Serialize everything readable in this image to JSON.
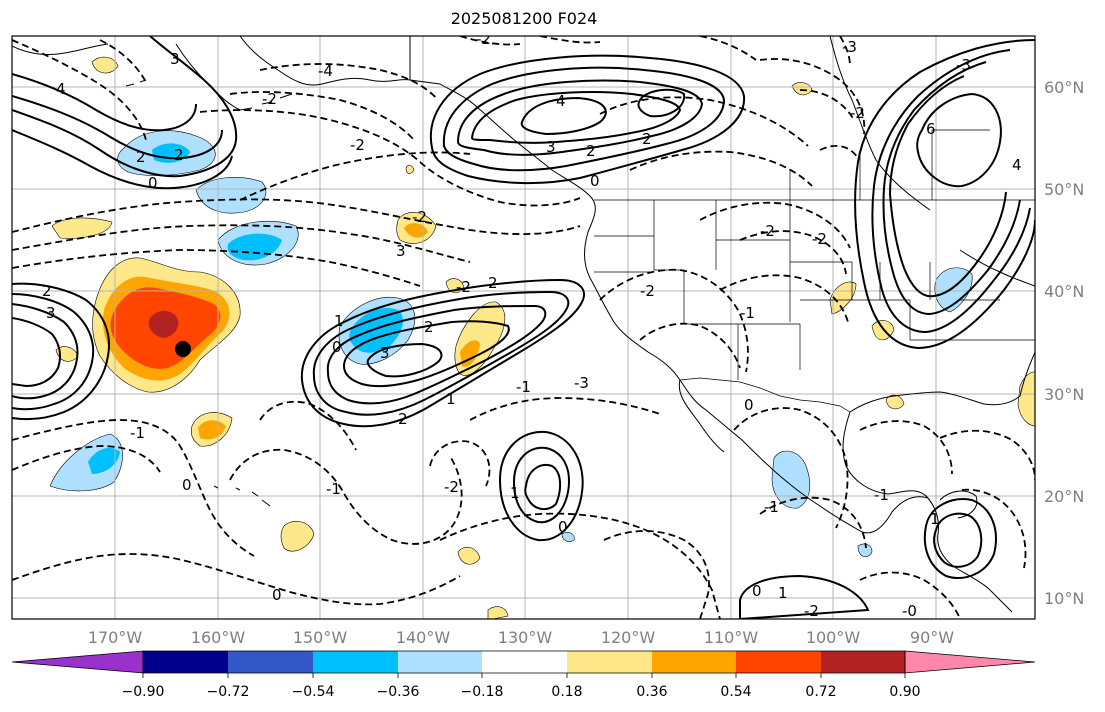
{
  "title": "2025081200 F024",
  "map": {
    "lon_range": [
      -180,
      -80
    ],
    "lat_range": [
      8,
      65
    ],
    "lat_labels": [
      "60°N",
      "50°N",
      "40°N",
      "30°N",
      "20°N",
      "10°N"
    ],
    "lon_labels": [
      "170°W",
      "160°W",
      "150°W",
      "140°W",
      "130°W",
      "120°W",
      "110°W",
      "100°W",
      "90°W"
    ],
    "marker": {
      "lon": -163,
      "lat": 34.5
    }
  },
  "colorbar": {
    "ticks": [
      "−0.90",
      "−0.72",
      "−0.54",
      "−0.36",
      "−0.18",
      "0.18",
      "0.36",
      "0.54",
      "0.72",
      "0.90"
    ],
    "colors": [
      "#9932cc",
      "#00008b",
      "#3457c8",
      "#00bfff",
      "#b0e0ff",
      "#ffffff",
      "#ffe88a",
      "#ffa500",
      "#ff4500",
      "#b22222",
      "#ff88aa"
    ]
  },
  "contour_labels": [
    "4",
    "3",
    "2",
    "2",
    "0",
    "-2",
    "3",
    "2",
    "-2",
    "-4",
    "-2",
    "4",
    "3",
    "2",
    "2",
    "0",
    "-3",
    "-2",
    "-3",
    "6",
    "4",
    "-2",
    "-2",
    "-2",
    "2",
    "-1",
    "3",
    "1",
    "-2",
    "-2",
    "2",
    "0",
    "3",
    "-3",
    "1",
    "-1",
    "0",
    "2",
    "-2",
    "1",
    "-1",
    "0",
    "0",
    "-1",
    "0",
    "-1",
    "1",
    "-1",
    "0",
    "1",
    "-2",
    "-0"
  ]
}
